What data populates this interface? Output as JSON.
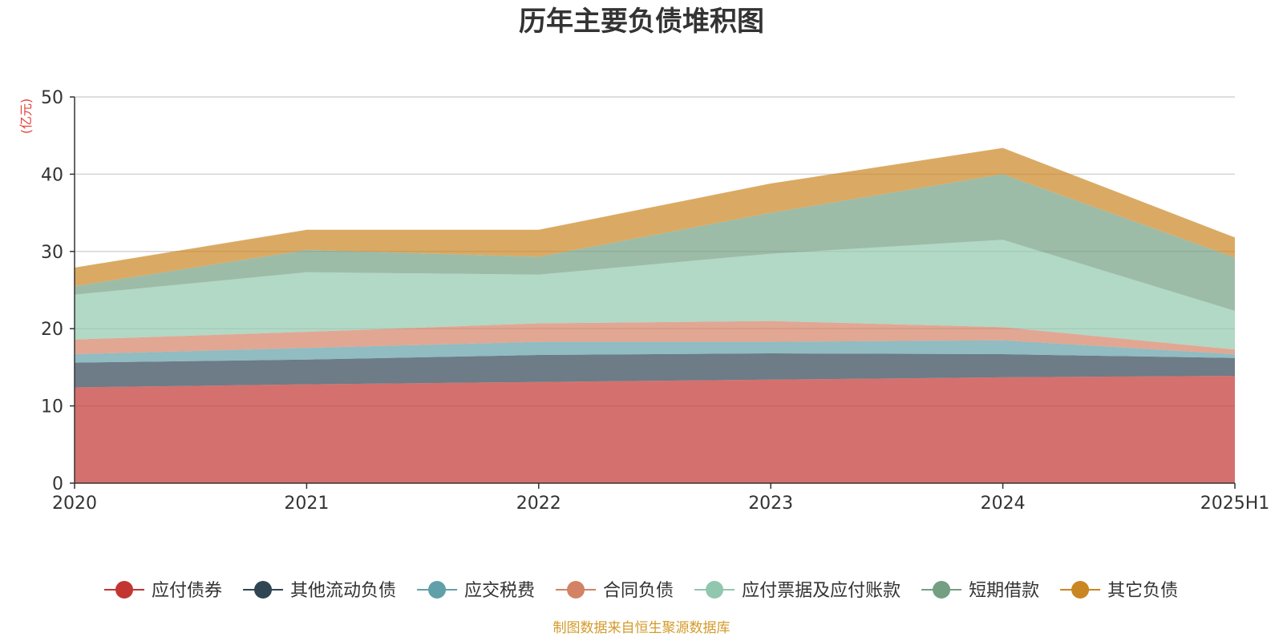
{
  "chart_data": {
    "type": "area",
    "stacked": true,
    "title": "历年主要负债堆积图",
    "unit": "(亿元)",
    "x": [
      "2020",
      "2021",
      "2022",
      "2023",
      "2024",
      "2025H1"
    ],
    "ylim": [
      0,
      50
    ],
    "yticks": [
      0,
      10,
      20,
      30,
      40,
      50
    ],
    "grid": true,
    "legend_position": "bottom",
    "series": [
      {
        "name": "应付债券",
        "color": "#c23531",
        "values": [
          12.4,
          12.8,
          13.1,
          13.4,
          13.7,
          13.9
        ]
      },
      {
        "name": "其他流动负债",
        "color": "#2f4554",
        "values": [
          3.2,
          3.2,
          3.5,
          3.4,
          3.0,
          2.3
        ]
      },
      {
        "name": "应交税费",
        "color": "#61a0a8",
        "values": [
          1.1,
          1.5,
          1.7,
          1.5,
          1.8,
          0.5
        ]
      },
      {
        "name": "合同负债",
        "color": "#d48265",
        "values": [
          1.9,
          2.1,
          2.4,
          2.7,
          1.7,
          0.6
        ]
      },
      {
        "name": "应付票据及应付账款",
        "color": "#91c7ae",
        "values": [
          5.8,
          7.7,
          6.3,
          8.7,
          11.3,
          5.0
        ]
      },
      {
        "name": "短期借款",
        "color": "#749f83",
        "values": [
          1.1,
          2.9,
          2.3,
          5.3,
          8.5,
          6.9
        ]
      },
      {
        "name": "其它负债",
        "color": "#ca8622",
        "values": [
          2.4,
          2.6,
          3.5,
          3.8,
          3.4,
          2.6
        ]
      }
    ]
  },
  "footer": {
    "source": "制图数据来自恒生聚源数据库"
  }
}
